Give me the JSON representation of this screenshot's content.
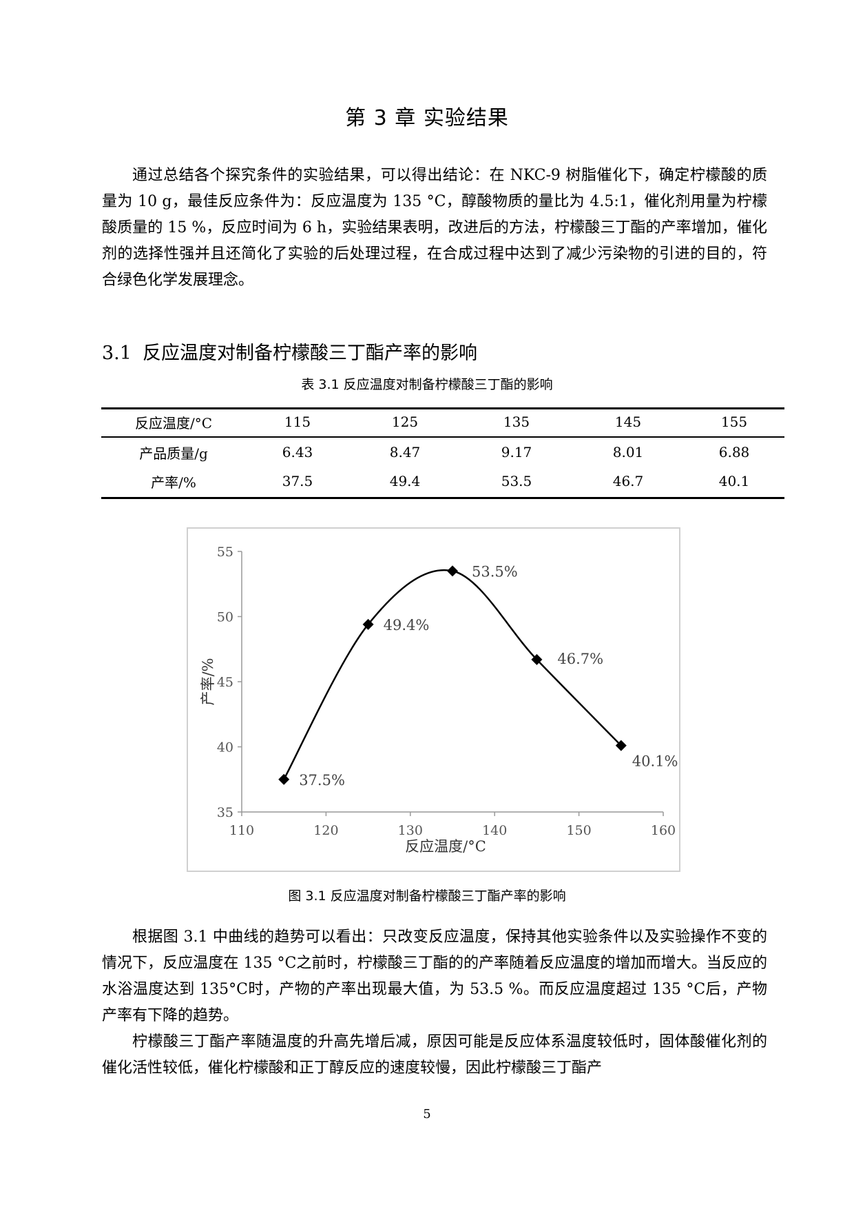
{
  "chapter_title": "第 3 章  实验结果",
  "intro_paragraph": "通过总结各个探究条件的实验结果，可以得出结论：在 NKC-9 树脂催化下，确定柠檬酸的质量为 10 g，最佳反应条件为：反应温度为 135 °C，醇酸物质的量比为 4.5:1，催化剂用量为柠檬酸质量的 15 %，反应时间为 6 h，实验结果表明，改进后的方法，柠檬酸三丁酯的产率增加，催化剂的选择性强并且还简化了实验的后处理过程，在合成过程中达到了减少污染物的引进的目的，符合绿色化学发展理念。",
  "section": {
    "number": "3.1",
    "title": "反应温度对制备柠檬酸三丁酯产率的影响"
  },
  "table": {
    "caption": "表 3.1  反应温度对制备柠檬酸三丁酯的影响",
    "header_label": "反应温度/°C",
    "temperatures": [
      "115",
      "125",
      "135",
      "145",
      "155"
    ],
    "rows": [
      {
        "label": "产品质量/g",
        "values": [
          "6.43",
          "8.47",
          "9.17",
          "8.01",
          "6.88"
        ]
      },
      {
        "label": "产率/%",
        "values": [
          "37.5",
          "49.4",
          "53.5",
          "46.7",
          "40.1"
        ]
      }
    ]
  },
  "chart_data": {
    "type": "line",
    "smooth": true,
    "marker": "diamond",
    "x": [
      115,
      125,
      135,
      145,
      155
    ],
    "y": [
      37.5,
      49.4,
      53.5,
      46.7,
      40.1
    ],
    "point_labels": [
      "37.5%",
      "49.4%",
      "53.5%",
      "46.7%",
      "40.1%"
    ],
    "xlabel": "反应温度/°C",
    "ylabel": "产率/%",
    "xlim": [
      110,
      160
    ],
    "ylim": [
      35,
      55
    ],
    "xticks": [
      "110",
      "120",
      "130",
      "140",
      "150",
      "160"
    ],
    "yticks": [
      "35",
      "40",
      "45",
      "50",
      "55"
    ],
    "grid": false,
    "line_color": "#000000"
  },
  "figure_caption": "图 3.1  反应温度对制备柠檬酸三丁酯产率的影响",
  "paragraph_2": "根据图 3.1 中曲线的趋势可以看出：只改变反应温度，保持其他实验条件以及实验操作不变的情况下，反应温度在 135 °C之前时，柠檬酸三丁酯的的产率随着反应温度的增加而增大。当反应的水浴温度达到 135°C时，产物的产率出现最大值，为 53.5 %。而反应温度超过 135 °C后，产物产率有下降的趋势。",
  "paragraph_3": "柠檬酸三丁酯产率随温度的升高先增后减，原因可能是反应体系温度较低时，固体酸催化剂的催化活性较低，催化柠檬酸和正丁醇反应的速度较慢，因此柠檬酸三丁酯产",
  "page_number": "5"
}
